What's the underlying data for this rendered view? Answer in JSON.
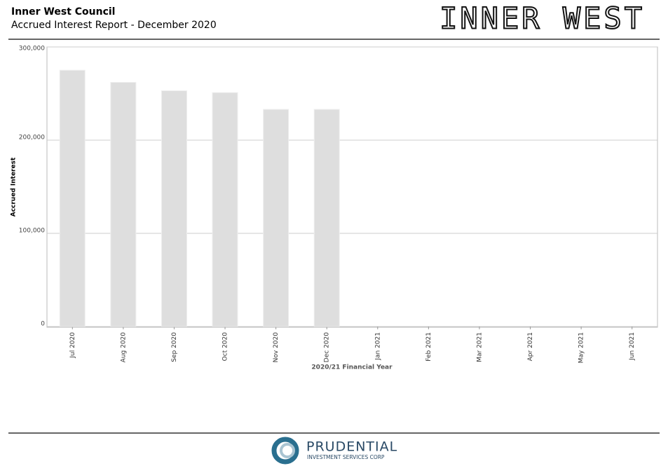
{
  "header": {
    "title": "Inner West Council",
    "subtitle": "Accrued Interest Report - December 2020",
    "logo": "INNER WEST"
  },
  "chart_data": {
    "type": "bar",
    "categories": [
      "Jul 2020",
      "Aug 2020",
      "Sep 2020",
      "Oct 2020",
      "Nov 2020",
      "Dec 2020",
      "Jan 2021",
      "Feb 2021",
      "Mar 2021",
      "Apr 2021",
      "May 2021",
      "Jun 2021"
    ],
    "values": [
      275000,
      262000,
      253000,
      251000,
      233000,
      233000,
      null,
      null,
      null,
      null,
      null,
      null
    ],
    "color": "#dedede",
    "x_label": "2020/21 Financial Year",
    "y_label": "Accrued Interest",
    "ylim": [
      0,
      300000
    ],
    "yticks": [
      0,
      {
        "value": 100000,
        "label": "100,000"
      },
      {
        "value": 200000,
        "label": "200,000"
      },
      {
        "value": 300000,
        "label": "300,000"
      }
    ],
    "grid": true
  },
  "footer": {
    "brand": "PRUDENTIAL",
    "tagline": "INVESTMENT SERVICES CORP"
  }
}
